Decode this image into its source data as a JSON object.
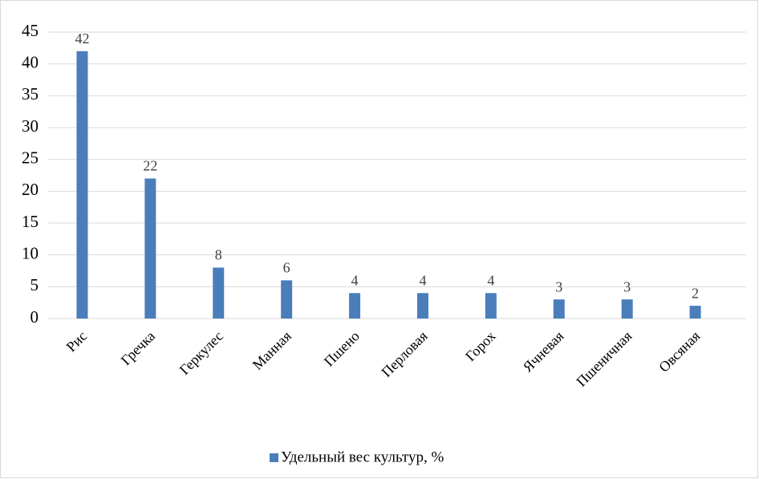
{
  "chart_data": {
    "type": "bar",
    "categories": [
      "Рис",
      "Гречка",
      "Геркулес",
      "Манная",
      "Пшено",
      "Перловая",
      "Горох",
      "Ячневая",
      "Пшеничная",
      "Овсяная"
    ],
    "series": [
      {
        "name": "Удельный вес культур, %",
        "color": "#4a7ebb",
        "values": [
          42,
          22,
          8,
          6,
          4,
          4,
          4,
          3,
          3,
          2
        ]
      }
    ],
    "ylim": [
      0,
      45
    ],
    "yticks": [
      0,
      5,
      10,
      15,
      20,
      25,
      30,
      35,
      40,
      45
    ],
    "grid": true,
    "legend": "bottom",
    "data_labels": true
  }
}
